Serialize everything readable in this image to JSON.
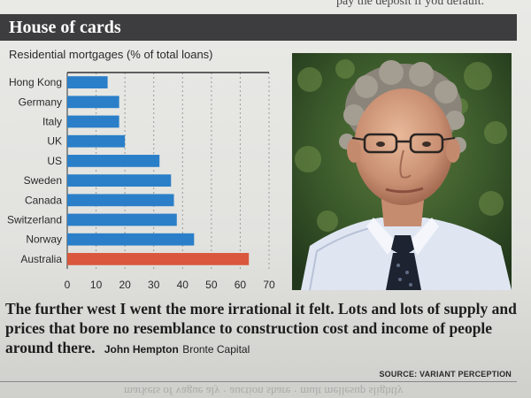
{
  "header": {
    "title": "House of cards"
  },
  "top_fragment": "pay the deposit if you default.",
  "chart_data": {
    "type": "bar",
    "orientation": "horizontal",
    "title": "Residential mortgages (% of total loans)",
    "categories": [
      "Hong Kong",
      "Germany",
      "Italy",
      "UK",
      "US",
      "Sweden",
      "Canada",
      "Switzerland",
      "Norway",
      "Australia"
    ],
    "values": [
      14,
      18,
      18,
      20,
      32,
      36,
      37,
      38,
      44,
      63
    ],
    "highlight": "Australia",
    "xlim": [
      0,
      70
    ],
    "xticks": [
      0,
      10,
      20,
      30,
      40,
      50,
      60,
      70
    ],
    "grid": "vertical-dashed",
    "colors": {
      "bar": "#2a7fc8",
      "highlight": "#d9573c",
      "axis": "#333333",
      "grid": "#9a9a9a"
    }
  },
  "photo": {
    "description": "man-portrait-icon"
  },
  "quote": {
    "text": "The further west I went the more irrational it felt. Lots and lots of supply and prices that bore no resemblance to construction cost and income of people around there.",
    "person": "John Hempton",
    "org": "Bronte Capital"
  },
  "source": "SOURCE: VARIANT PERCEPTION",
  "bleed_text": "markets of vague aly · auction share · mult mellesup slightly"
}
